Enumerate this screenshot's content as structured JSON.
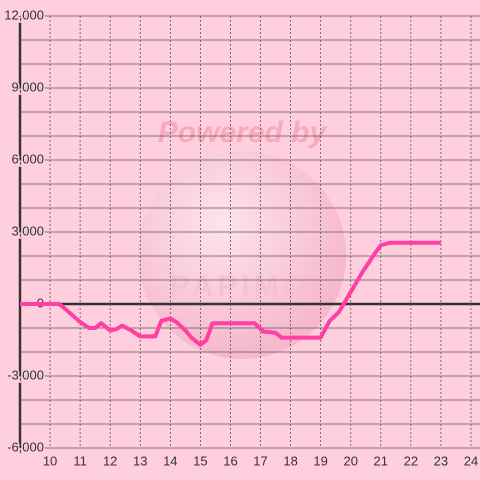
{
  "chart_data": {
    "type": "line",
    "watermark": [
      "Powered by",
      "PAPIMO"
    ],
    "x": [
      9,
      10.3,
      10.5,
      11,
      11.3,
      11.5,
      11.7,
      12,
      12.2,
      12.4,
      12.7,
      13,
      13.5,
      13.7,
      14,
      14.2,
      14.5,
      14.7,
      15,
      15.2,
      15.4,
      16.8,
      17.1,
      17.5,
      17.7,
      19,
      19.3,
      19.6,
      20,
      20.4,
      20.8,
      21,
      21.3,
      23
    ],
    "series": [
      {
        "color": "#ff3fa4",
        "values": [
          0,
          0,
          -200,
          -750,
          -1000,
          -1000,
          -800,
          -1100,
          -1050,
          -900,
          -1100,
          -1350,
          -1350,
          -700,
          -600,
          -750,
          -1100,
          -1400,
          -1700,
          -1500,
          -800,
          -800,
          -1150,
          -1200,
          -1400,
          -1400,
          -700,
          -350,
          500,
          1350,
          2100,
          2450,
          2550,
          2550
        ]
      }
    ],
    "xlim": [
      9,
      24.3
    ],
    "ylim": [
      -6000,
      12000
    ],
    "xticks": [
      10,
      11,
      12,
      13,
      14,
      15,
      16,
      17,
      18,
      19,
      20,
      21,
      22,
      23,
      24
    ],
    "yticks": [
      {
        "value": -6000,
        "label": "-6,000"
      },
      {
        "value": -3000,
        "label": "-3,000"
      },
      0,
      {
        "value": 3000,
        "label": "3,000"
      },
      {
        "value": 6000,
        "label": "6,000"
      },
      {
        "value": 9000,
        "label": "9,000"
      },
      {
        "value": 12000,
        "label": "12,000"
      }
    ],
    "minor_yticks": [
      -5000,
      -4000,
      -2000,
      -1000,
      1000,
      2000,
      4000,
      5000,
      7000,
      8000,
      10000,
      11000
    ],
    "grid": true
  }
}
